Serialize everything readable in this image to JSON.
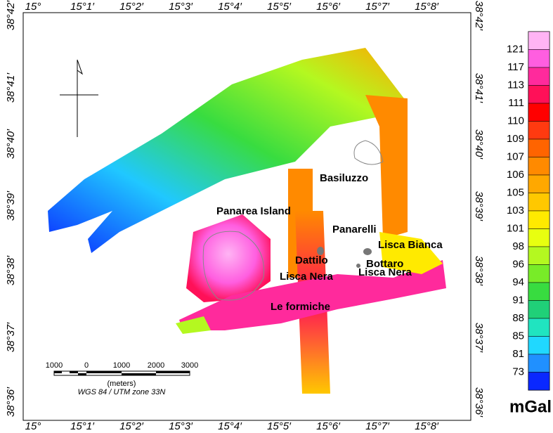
{
  "map": {
    "lon_ticks": [
      "15°",
      "15°1′",
      "15°2′",
      "15°3′",
      "15°4′",
      "15°5′",
      "15°6′",
      "15°7′",
      "15°8′"
    ],
    "lat_ticks": [
      "38°42′",
      "38°41′",
      "38°40′",
      "38°39′",
      "38°38′",
      "38°37′",
      "38°36′"
    ],
    "places": [
      "Basiluzzo",
      "Panarea Island",
      "Panarelli",
      "Lisca Bianca",
      "Dattilo",
      "Bottaro",
      "Lisca Nera",
      "Lisca Nera",
      "Le formiche"
    ],
    "scale_bar": {
      "labels": [
        1000,
        0,
        1000,
        2000,
        3000
      ],
      "unit": "(meters)",
      "datum": "WGS 84 / UTM zone 33N"
    }
  },
  "colorbar": {
    "labels": [
      121,
      117,
      113,
      111,
      110,
      109,
      107,
      106,
      105,
      103,
      101,
      98,
      96,
      94,
      91,
      88,
      85,
      81,
      73
    ],
    "colors": [
      "#ffb4f4",
      "#ff5ee0",
      "#ff2a9c",
      "#ff1058",
      "#ff0000",
      "#ff3a10",
      "#ff6400",
      "#ff8a00",
      "#ffa800",
      "#ffc800",
      "#ffea00",
      "#e8ff10",
      "#b4f820",
      "#78ec28",
      "#38dc40",
      "#20d078",
      "#20e4c0",
      "#20d8ff",
      "#2090ff",
      "#0a28ff"
    ],
    "unit": "mGal"
  }
}
